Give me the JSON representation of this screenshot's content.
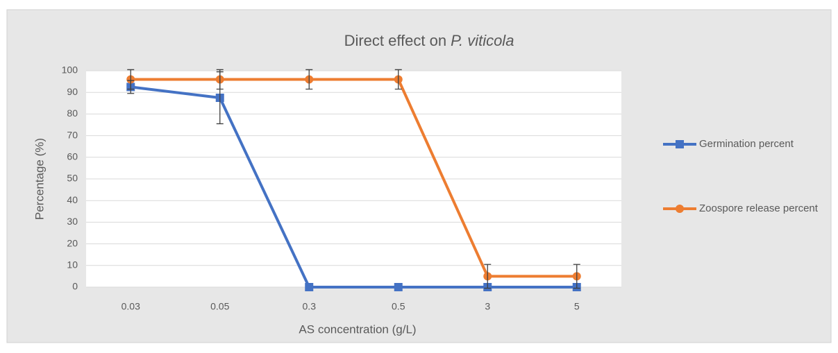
{
  "chart_data": {
    "type": "line",
    "title": [
      "Direct effect on",
      "P. viticola"
    ],
    "x_label": "AS concentration (g/L)",
    "y_label": "Percentage (%)",
    "categories": [
      "0.03",
      "0.05",
      "0.3",
      "0.5",
      "3",
      "5"
    ],
    "series": [
      {
        "name": "Germination percent",
        "color": "#4472c4",
        "marker": "square",
        "values": [
          92.5,
          87.5,
          0,
          0,
          0,
          0
        ],
        "errors": [
          3,
          12,
          0,
          0,
          0,
          0
        ]
      },
      {
        "name": "Zoospore release percent",
        "color": "#ed7d31",
        "marker": "circle",
        "values": [
          96,
          96,
          96,
          96,
          5,
          5
        ],
        "errors": [
          4.5,
          4.5,
          4.5,
          4.5,
          5.5,
          5.5
        ]
      }
    ],
    "ylim": [
      0,
      100
    ],
    "yticks": [
      0,
      10,
      20,
      30,
      40,
      50,
      60,
      70,
      80,
      90,
      100
    ],
    "grid": true,
    "legend": "right"
  }
}
